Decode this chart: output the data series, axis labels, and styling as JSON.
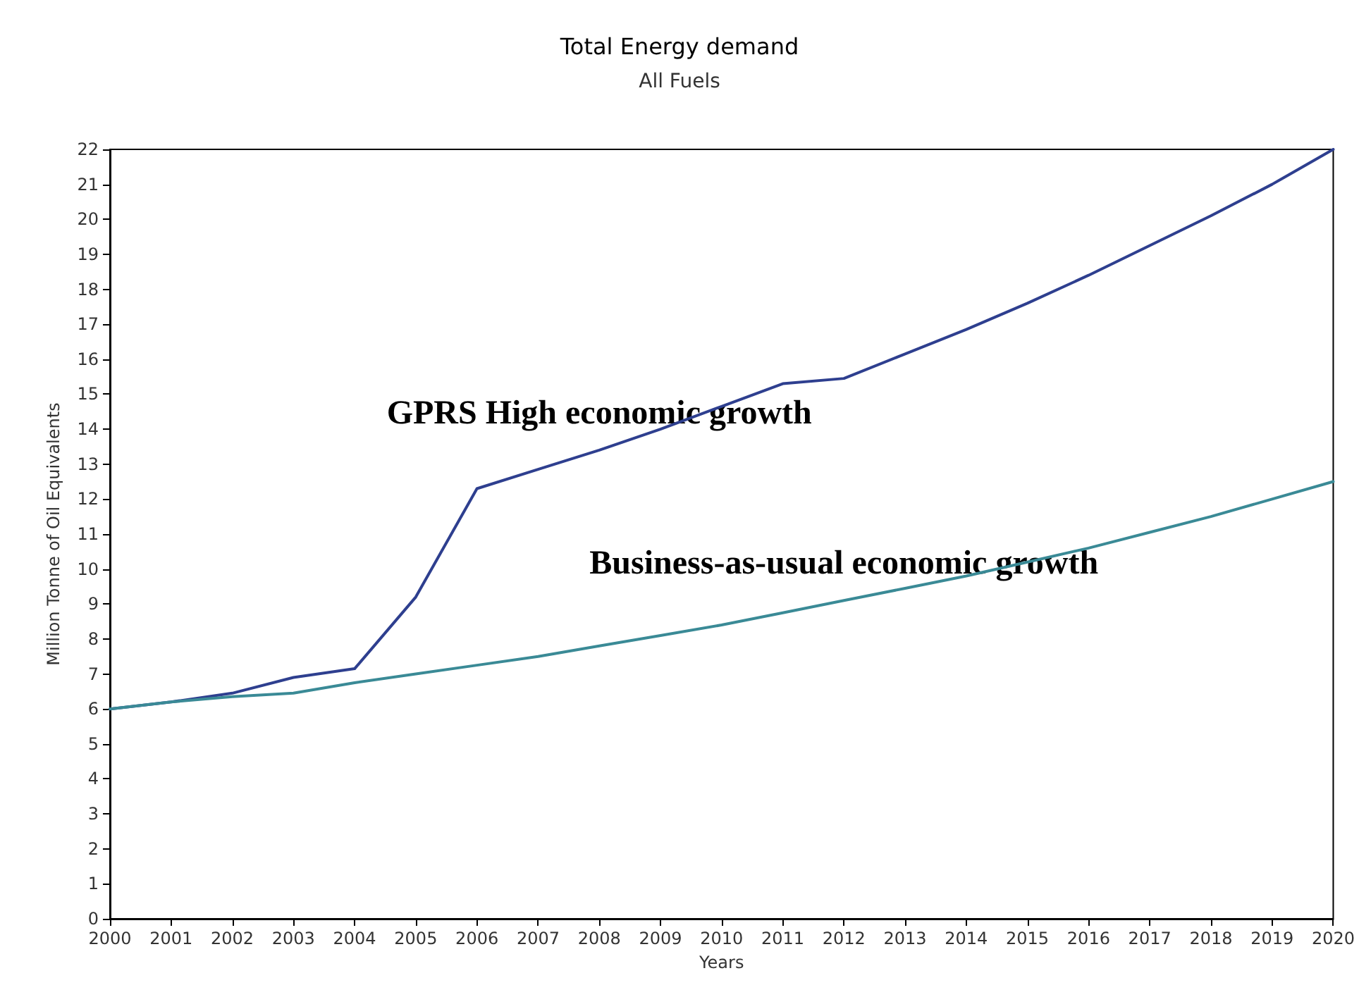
{
  "chart_data": {
    "type": "line",
    "title": "Total Energy demand",
    "subtitle": "All Fuels",
    "xlabel": "Years",
    "ylabel": "Million Tonne of Oil Equivalents",
    "x": [
      2000,
      2001,
      2002,
      2003,
      2004,
      2005,
      2006,
      2007,
      2008,
      2009,
      2010,
      2011,
      2012,
      2013,
      2014,
      2015,
      2016,
      2017,
      2018,
      2019,
      2020
    ],
    "series": [
      {
        "name": "GPRS High economic growth",
        "color": "#2e3f8f",
        "values": [
          6,
          6.2,
          6.45,
          6.9,
          7.15,
          9.2,
          12.3,
          12.85,
          13.4,
          14.0,
          14.65,
          15.3,
          15.45,
          16.15,
          16.85,
          17.6,
          18.4,
          19.25,
          20.1,
          21.0,
          22.0
        ]
      },
      {
        "name": "Business-as-usual economic growth",
        "color": "#3a8a96",
        "values": [
          6,
          6.2,
          6.35,
          6.45,
          6.75,
          7.0,
          7.25,
          7.5,
          7.8,
          8.1,
          8.4,
          8.75,
          9.1,
          9.45,
          9.8,
          10.2,
          10.6,
          11.05,
          11.5,
          12.0,
          12.5
        ]
      }
    ],
    "xlim": [
      2000,
      2020
    ],
    "xticks": [
      2000,
      2001,
      2002,
      2003,
      2004,
      2005,
      2006,
      2007,
      2008,
      2009,
      2010,
      2011,
      2012,
      2013,
      2014,
      2015,
      2016,
      2017,
      2018,
      2019,
      2020
    ],
    "ylim": [
      0,
      22
    ],
    "yticks": [
      0,
      1,
      2,
      3,
      4,
      5,
      6,
      7,
      8,
      9,
      10,
      11,
      12,
      13,
      14,
      15,
      16,
      17,
      18,
      19,
      20,
      21,
      22
    ],
    "grid": false,
    "legend": false,
    "marker": "none",
    "line_style": "solid"
  }
}
